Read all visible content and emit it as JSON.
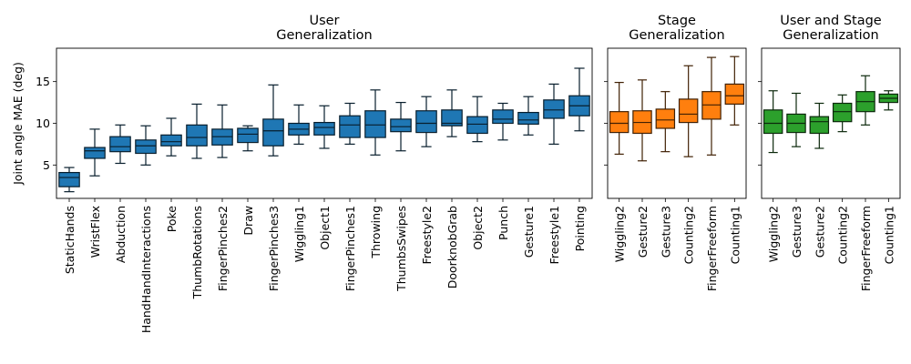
{
  "chart_data": [
    {
      "type": "box",
      "title": "User\nGeneralization",
      "ylabel": "Joint angle MAE (deg)",
      "ylim": [
        1,
        19
      ],
      "yticks": [
        5,
        10,
        15
      ],
      "color": "#1f77b4",
      "categories": [
        "StaticHands",
        "WristFlex",
        "Abduction",
        "HandHandInteractions",
        "Poke",
        "ThumbRotations",
        "FingerPinches2",
        "Draw",
        "FingerPinches3",
        "Wiggling1",
        "Object1",
        "FingerPinches1",
        "Throwing",
        "ThumbsSwipes",
        "Freestyle2",
        "DoorknobGrab",
        "Object2",
        "Punch",
        "Gesture1",
        "Freestyle1",
        "Pointing"
      ],
      "boxes": [
        {
          "min": 1.8,
          "q1": 2.4,
          "median": 3.5,
          "q3": 4.1,
          "max": 4.7
        },
        {
          "min": 3.7,
          "q1": 5.8,
          "median": 6.7,
          "q3": 7.1,
          "max": 9.3
        },
        {
          "min": 5.2,
          "q1": 6.6,
          "median": 7.2,
          "q3": 8.4,
          "max": 9.8
        },
        {
          "min": 5.0,
          "q1": 6.4,
          "median": 7.3,
          "q3": 8.0,
          "max": 9.7
        },
        {
          "min": 6.1,
          "q1": 7.3,
          "median": 7.8,
          "q3": 8.6,
          "max": 10.6
        },
        {
          "min": 5.8,
          "q1": 7.3,
          "median": 8.3,
          "q3": 9.8,
          "max": 12.3
        },
        {
          "min": 5.9,
          "q1": 7.4,
          "median": 8.4,
          "q3": 9.3,
          "max": 12.2
        },
        {
          "min": 6.7,
          "q1": 7.7,
          "median": 8.7,
          "q3": 9.4,
          "max": 9.7
        },
        {
          "min": 6.1,
          "q1": 7.3,
          "median": 9.1,
          "q3": 10.5,
          "max": 14.6
        },
        {
          "min": 7.5,
          "q1": 8.6,
          "median": 9.3,
          "q3": 10.0,
          "max": 12.2
        },
        {
          "min": 7.0,
          "q1": 8.6,
          "median": 9.5,
          "q3": 10.1,
          "max": 12.1
        },
        {
          "min": 7.5,
          "q1": 8.3,
          "median": 9.8,
          "q3": 10.9,
          "max": 12.4
        },
        {
          "min": 6.2,
          "q1": 8.3,
          "median": 9.8,
          "q3": 11.5,
          "max": 14.0
        },
        {
          "min": 6.7,
          "q1": 9.0,
          "median": 9.6,
          "q3": 10.5,
          "max": 12.5
        },
        {
          "min": 7.2,
          "q1": 8.9,
          "median": 10.0,
          "q3": 11.5,
          "max": 13.2
        },
        {
          "min": 8.4,
          "q1": 9.7,
          "median": 10.0,
          "q3": 11.6,
          "max": 14.0
        },
        {
          "min": 7.8,
          "q1": 8.8,
          "median": 9.9,
          "q3": 10.8,
          "max": 13.2
        },
        {
          "min": 8.0,
          "q1": 10.0,
          "median": 10.5,
          "q3": 11.6,
          "max": 12.4
        },
        {
          "min": 8.6,
          "q1": 9.9,
          "median": 10.4,
          "q3": 11.3,
          "max": 13.2
        },
        {
          "min": 7.5,
          "q1": 10.6,
          "median": 11.6,
          "q3": 12.8,
          "max": 14.7
        },
        {
          "min": 9.1,
          "q1": 10.9,
          "median": 12.1,
          "q3": 13.3,
          "max": 16.6
        }
      ]
    },
    {
      "type": "box",
      "title": "Stage\nGeneralization",
      "ylim": [
        1,
        19
      ],
      "yticks": [
        5,
        10,
        15
      ],
      "color": "#ff7f0e",
      "categories": [
        "Wiggling2",
        "Gesture2",
        "Gesture3",
        "Counting2",
        "FingerFreeform",
        "Counting1"
      ],
      "boxes": [
        {
          "min": 6.3,
          "q1": 8.9,
          "median": 10.0,
          "q3": 11.4,
          "max": 14.9
        },
        {
          "min": 5.5,
          "q1": 8.8,
          "median": 10.1,
          "q3": 11.5,
          "max": 15.2
        },
        {
          "min": 6.6,
          "q1": 9.4,
          "median": 10.4,
          "q3": 11.7,
          "max": 13.8
        },
        {
          "min": 6.0,
          "q1": 10.1,
          "median": 11.1,
          "q3": 12.9,
          "max": 16.9
        },
        {
          "min": 6.2,
          "q1": 10.5,
          "median": 12.2,
          "q3": 13.8,
          "max": 17.9
        },
        {
          "min": 9.8,
          "q1": 12.3,
          "median": 13.3,
          "q3": 14.7,
          "max": 18.0
        }
      ]
    },
    {
      "type": "box",
      "title": "User and Stage\nGeneralization",
      "ylim": [
        1,
        19
      ],
      "yticks": [
        5,
        10,
        15
      ],
      "color": "#2ca02c",
      "categories": [
        "Wiggling2",
        "Gesture3",
        "Gesture2",
        "Counting2",
        "FingerFreeform",
        "Counting1"
      ],
      "boxes": [
        {
          "min": 6.5,
          "q1": 8.8,
          "median": 10.0,
          "q3": 11.6,
          "max": 13.9
        },
        {
          "min": 7.2,
          "q1": 8.9,
          "median": 10.0,
          "q3": 11.1,
          "max": 13.6
        },
        {
          "min": 7.0,
          "q1": 8.8,
          "median": 10.2,
          "q3": 10.8,
          "max": 12.4
        },
        {
          "min": 9.0,
          "q1": 10.2,
          "median": 11.4,
          "q3": 12.4,
          "max": 13.4
        },
        {
          "min": 9.8,
          "q1": 11.4,
          "median": 12.6,
          "q3": 13.8,
          "max": 15.7
        },
        {
          "min": 11.6,
          "q1": 12.5,
          "median": 13.0,
          "q3": 13.5,
          "max": 13.9
        }
      ]
    }
  ]
}
